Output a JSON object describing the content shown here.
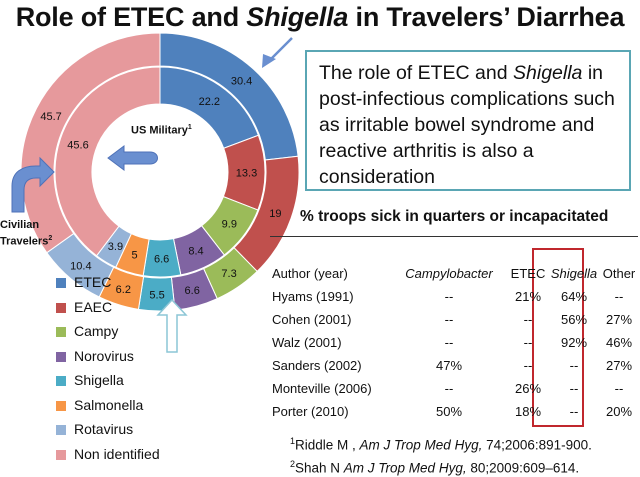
{
  "title": {
    "part1": "Role of ETEC and ",
    "italic": "Shigella",
    "part2": " in Travelers’ Diarrhea"
  },
  "chart_data": {
    "type": "donut",
    "categories": [
      "ETEC",
      "EAEC",
      "Campy",
      "Norovirus",
      "Shigella",
      "Salmonella",
      "Rotavirus",
      "Non identified"
    ],
    "colors": [
      "#4f81bd",
      "#c0504d",
      "#9bbb59",
      "#8064a2",
      "#4bacc6",
      "#f79646",
      "#95b3d7",
      "#e6999c"
    ],
    "series": [
      {
        "name": "US Military",
        "values": [
          22.2,
          13.3,
          9.9,
          8.4,
          6.6,
          5.0,
          3.9,
          45.6
        ]
      },
      {
        "name": "Civilian Travelers",
        "values": [
          30.4,
          19,
          7.3,
          6.6,
          5.5,
          6.2,
          10.4,
          45.7
        ]
      }
    ]
  },
  "labels": {
    "military": "US Military",
    "military_sup": "1",
    "civilian_line1": "Civilian",
    "civilian_line2": "Travelers",
    "civilian_sup": "2"
  },
  "legend": [
    "ETEC",
    "EAEC",
    "Campy",
    "Norovirus",
    "Shigella",
    "Salmonella",
    "Rotavirus",
    "Non identified"
  ],
  "callout": {
    "part1": "The role of ETEC and ",
    "italic": "Shigella",
    "part2": " in post-infectious complications such as irritable bowel syndrome and reactive arthritis is also a consideration"
  },
  "table": {
    "title": "% troops sick in quarters or incapacitated",
    "headers": [
      "Author (year)",
      "Campylobacter",
      "ETEC",
      "Shigella",
      "Other"
    ],
    "rows": [
      [
        "Hyams (1991)",
        "--",
        "21%",
        "64%",
        "--"
      ],
      [
        "Cohen (2001)",
        "--",
        "--",
        "56%",
        "27%"
      ],
      [
        "Walz (2001)",
        "--",
        "--",
        "92%",
        "46%"
      ],
      [
        "Sanders (2002)",
        "47%",
        "--",
        "--",
        "27%"
      ],
      [
        "Monteville (2006)",
        "--",
        "26%",
        "--",
        "--"
      ],
      [
        "Porter (2010)",
        "50%",
        "18%",
        "--",
        "20%"
      ]
    ]
  },
  "references": [
    {
      "num": "1",
      "author": "Riddle M , ",
      "journal": "Am J Trop Med Hyg,",
      "rest": " 74;2006:891-900."
    },
    {
      "num": "2",
      "author": "Shah N ",
      "journal": "Am J Trop Med Hyg,",
      "rest": " 80;2009:609–614."
    }
  ]
}
